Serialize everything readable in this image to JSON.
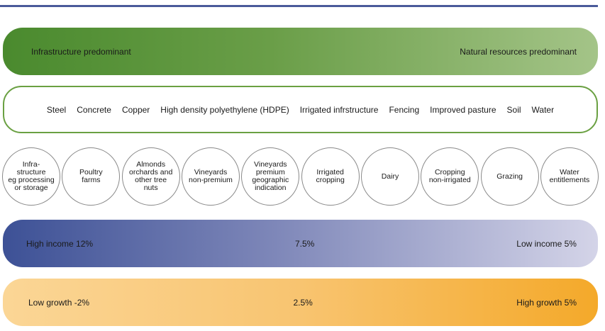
{
  "top_band": {
    "left": "Infrastructure predominant",
    "right": "Natural resources predominant"
  },
  "materials": [
    "Steel",
    "Concrete",
    "Copper",
    "High density polyethylene (HDPE)",
    "Irrigated infrstructure",
    "Fencing",
    "Improved pasture",
    "Soil",
    "Water"
  ],
  "assets": [
    "Infra-\nstructure\neg processing\nor storage",
    "Poultry\nfarms",
    "Almonds\norchards and\nother tree\nnuts",
    "Vineyards\nnon-premium",
    "Vineyards\npremium\ngeographic\nindication",
    "Irrigated\ncropping",
    "Dairy",
    "Cropping\nnon-irrigated",
    "Grazing",
    "Water\nentitlements"
  ],
  "income_band": {
    "left": "High income 12%",
    "middle": "7.5%",
    "right": "Low income 5%"
  },
  "growth_band": {
    "left": "Low growth -2%",
    "middle": "2.5%",
    "right": "High growth 5%"
  },
  "colors": {
    "rule": "#4a5a9a",
    "green_start": "#4a8a2e",
    "green_end": "#a4c488",
    "blue_start": "#3d5196",
    "blue_end": "#d4d4e8",
    "orange_start": "#fbd696",
    "orange_end": "#f4a92a"
  }
}
